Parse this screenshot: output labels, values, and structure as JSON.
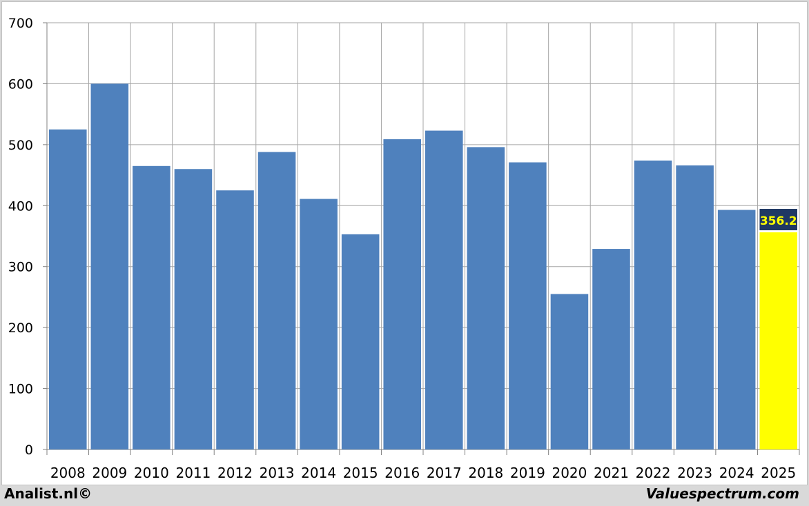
{
  "chart_data": {
    "type": "bar",
    "categories": [
      "2008",
      "2009",
      "2010",
      "2011",
      "2012",
      "2013",
      "2014",
      "2015",
      "2016",
      "2017",
      "2018",
      "2019",
      "2020",
      "2021",
      "2022",
      "2023",
      "2024",
      "2025"
    ],
    "values": [
      525,
      600,
      465,
      460,
      425,
      488,
      411,
      353,
      509,
      523,
      496,
      471,
      255,
      329,
      474,
      466,
      393,
      356.2
    ],
    "highlight_label": "356.2",
    "ylim": [
      0,
      700
    ],
    "yticks": [
      "0",
      "100",
      "200",
      "300",
      "400",
      "500",
      "600",
      "700"
    ],
    "grid": true,
    "colors": {
      "bar": "#4f81bd",
      "highlight_bar": "#ffff00",
      "highlight_label_bg": "#1f3864",
      "highlight_label_text": "#ffff00",
      "grid": "#a6a6a6"
    }
  },
  "footer": {
    "left": "Analist.nl©",
    "right": "Valuespectrum.com"
  }
}
